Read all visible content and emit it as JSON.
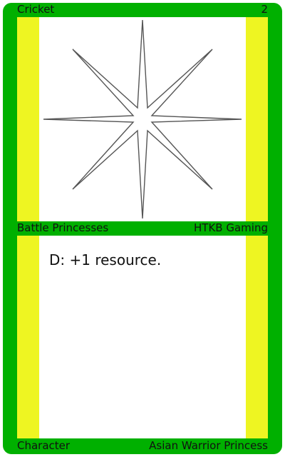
{
  "card": {
    "name": "Cricket",
    "cost": "2",
    "set_name": "Battle Princesses",
    "publisher": "HTKB Gaming",
    "rules_text": "D: +1 resource.",
    "card_type": "Character",
    "subtype": "Asian Warrior Princess",
    "art_icon": "eight-point-star-icon"
  },
  "colors": {
    "frame": "#00b000",
    "stripe": "#eef522",
    "panel": "#ffffff",
    "star_stroke": "#555555"
  }
}
